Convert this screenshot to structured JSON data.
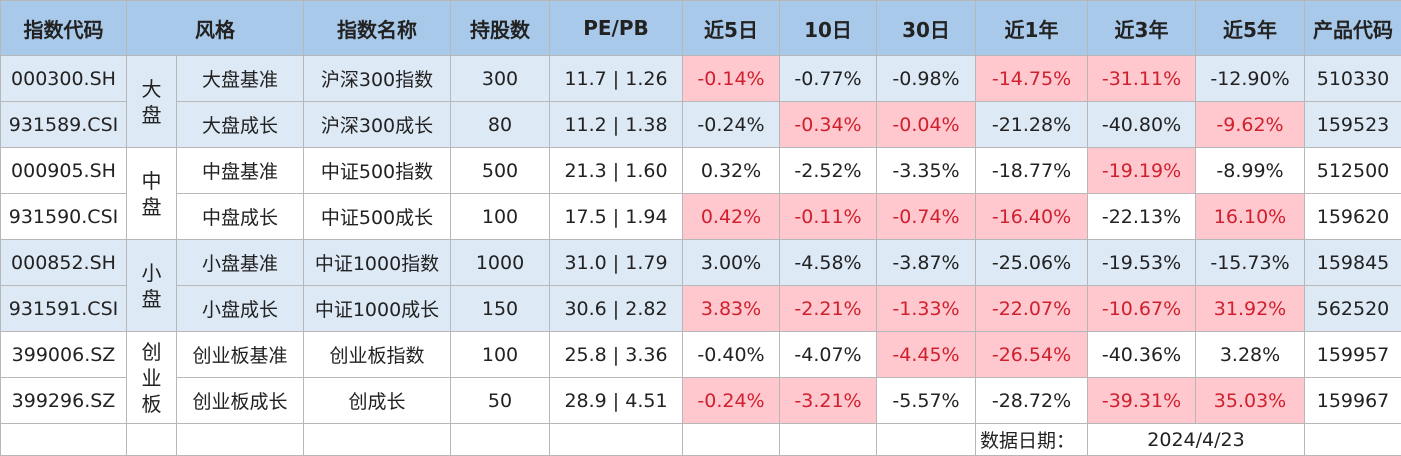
{
  "table": {
    "header": [
      "指数代码",
      "风格",
      "指数名称",
      "持股数",
      "PE/PB",
      "近5日",
      "10日",
      "30日",
      "近1年",
      "近3年",
      "近5年",
      "产品代码"
    ],
    "groups": [
      {
        "label": "大盘",
        "rows": [
          {
            "cells": [
              "000300.SH",
              "大盘基准",
              "沪深300指数",
              "300",
              "11.7 | 1.26",
              "-0.14%",
              "-0.77%",
              "-0.98%",
              "-14.75%",
              "-31.11%",
              "-12.90%",
              "510330"
            ],
            "highlight": [
              5,
              8,
              9
            ]
          },
          {
            "cells": [
              "931589.CSI",
              "大盘成长",
              "沪深300成长",
              "80",
              "11.2 | 1.38",
              "-0.24%",
              "-0.34%",
              "-0.04%",
              "-21.28%",
              "-40.80%",
              "-9.62%",
              "159523"
            ],
            "highlight": [
              6,
              7,
              10
            ]
          }
        ]
      },
      {
        "label": "中盘",
        "rows": [
          {
            "cells": [
              "000905.SH",
              "中盘基准",
              "中证500指数",
              "500",
              "21.3 | 1.60",
              "0.32%",
              "-2.52%",
              "-3.35%",
              "-18.77%",
              "-19.19%",
              "-8.99%",
              "512500"
            ],
            "highlight": [
              9
            ]
          },
          {
            "cells": [
              "931590.CSI",
              "中盘成长",
              "中证500成长",
              "100",
              "17.5 | 1.94",
              "0.42%",
              "-0.11%",
              "-0.74%",
              "-16.40%",
              "-22.13%",
              "16.10%",
              "159620"
            ],
            "highlight": [
              5,
              6,
              7,
              8,
              10
            ]
          }
        ]
      },
      {
        "label": "小盘",
        "rows": [
          {
            "cells": [
              "000852.SH",
              "小盘基准",
              "中证1000指数",
              "1000",
              "31.0 | 1.79",
              "3.00%",
              "-4.58%",
              "-3.87%",
              "-25.06%",
              "-19.53%",
              "-15.73%",
              "159845"
            ],
            "highlight": []
          },
          {
            "cells": [
              "931591.CSI",
              "小盘成长",
              "中证1000成长",
              "150",
              "30.6 | 2.82",
              "3.83%",
              "-2.21%",
              "-1.33%",
              "-22.07%",
              "-10.67%",
              "31.92%",
              "562520"
            ],
            "highlight": [
              5,
              6,
              7,
              8,
              9,
              10
            ]
          }
        ]
      },
      {
        "label": "创业板",
        "rows": [
          {
            "cells": [
              "399006.SZ",
              "创业板基准",
              "创业板指数",
              "100",
              "25.8 | 3.36",
              "-0.40%",
              "-4.07%",
              "-4.45%",
              "-26.54%",
              "-40.36%",
              "3.28%",
              "159957"
            ],
            "highlight": [
              7,
              8
            ]
          },
          {
            "cells": [
              "399296.SZ",
              "创业板成长",
              "创成长",
              "50",
              "28.9 | 4.51",
              "-0.24%",
              "-3.21%",
              "-5.57%",
              "-28.72%",
              "-39.31%",
              "35.03%",
              "159967"
            ],
            "highlight": [
              5,
              6,
              9,
              10
            ]
          }
        ]
      }
    ],
    "footer": {
      "label": "数据日期：",
      "date": "2024/4/23"
    }
  }
}
